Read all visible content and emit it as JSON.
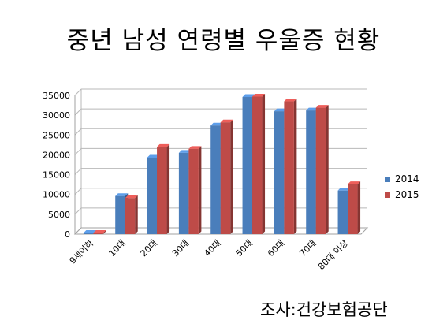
{
  "chart_data": {
    "type": "bar",
    "title": "중년 남성 연령별 우울증 현황",
    "categories": [
      "9세이하",
      "10대",
      "20대",
      "30대",
      "40대",
      "50대",
      "60대",
      "70대",
      "80대 이상"
    ],
    "series": [
      {
        "name": "2014",
        "color": "#4a7ebb",
        "values": [
          300,
          9600,
          19300,
          20500,
          27400,
          34600,
          31000,
          31200,
          11000
        ]
      },
      {
        "name": "2015",
        "color": "#be4b48",
        "values": [
          300,
          9100,
          22000,
          21500,
          28200,
          34700,
          33500,
          31900,
          12600
        ]
      }
    ],
    "yticks": [
      "0",
      "5000",
      "10000",
      "15000",
      "20000",
      "25000",
      "30000",
      "35000"
    ],
    "ylim": [
      0,
      35000
    ],
    "legend_position": "right",
    "grid": true,
    "source": "조사:건강보험공단"
  }
}
